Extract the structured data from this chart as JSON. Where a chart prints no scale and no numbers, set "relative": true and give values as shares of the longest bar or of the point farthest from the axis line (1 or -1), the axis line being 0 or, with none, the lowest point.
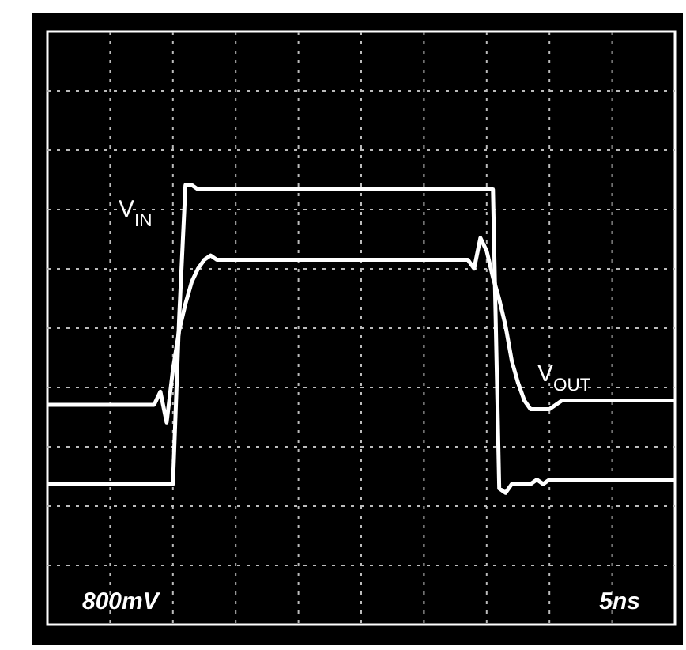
{
  "chart_data": {
    "type": "line",
    "relative": true,
    "grid": true,
    "line_style": "solid",
    "marker": "none",
    "categories": [
      null,
      null,
      null,
      null,
      null,
      null,
      null,
      null,
      null,
      null,
      null,
      null,
      null,
      null,
      null,
      null,
      null,
      null,
      null,
      null,
      null,
      null,
      null,
      null,
      null,
      null,
      null,
      null,
      null,
      null,
      null,
      null,
      null,
      null,
      null,
      null,
      null,
      null,
      null,
      null,
      null,
      null,
      null,
      null,
      null,
      null,
      null,
      null,
      null,
      null,
      null,
      null,
      null,
      null,
      null,
      null,
      null,
      null,
      null,
      null,
      null,
      null,
      null,
      null,
      null,
      null,
      null,
      null,
      null,
      null,
      null,
      null,
      null,
      null,
      null,
      null,
      null,
      null,
      null,
      null,
      null,
      null,
      null,
      null,
      null,
      null,
      null,
      null,
      null,
      null,
      null,
      null,
      null,
      null,
      null,
      null,
      null,
      null,
      null,
      null,
      null
    ],
    "series": [
      {
        "name": "V$_{IN}$",
        "color": "#ffffff",
        "values": [
          0.32,
          0.32,
          0.32,
          0.32,
          0.32,
          0.32,
          0.32,
          0.32,
          0.32,
          0.32,
          0.32,
          0.32,
          0.32,
          0.32,
          0.32,
          0.32,
          0.32,
          0.32,
          0.32,
          0.32,
          0.32,
          0.7,
          1,
          1,
          0.99,
          0.99,
          0.99,
          0.99,
          0.99,
          0.99,
          0.99,
          0.99,
          0.99,
          0.99,
          0.99,
          0.99,
          0.99,
          0.99,
          0.99,
          0.99,
          0.99,
          0.99,
          0.99,
          0.99,
          0.99,
          0.99,
          0.99,
          0.99,
          0.99,
          0.99,
          0.99,
          0.99,
          0.99,
          0.99,
          0.99,
          0.99,
          0.99,
          0.99,
          0.99,
          0.99,
          0.99,
          0.99,
          0.99,
          0.99,
          0.99,
          0.99,
          0.99,
          0.99,
          0.99,
          0.99,
          0.99,
          0.99,
          0.31,
          0.3,
          0.32,
          0.32,
          0.32,
          0.32,
          0.33,
          0.32,
          0.33,
          0.33,
          0.33,
          0.33,
          0.33,
          0.33,
          0.33,
          0.33,
          0.33,
          0.33,
          0.33,
          0.33,
          0.33,
          0.33,
          0.33,
          0.33,
          0.33,
          0.33,
          0.33,
          0.33,
          0.33
        ]
      },
      {
        "name": "V$_{OUT}$",
        "color": "#ffffff",
        "values": [
          0.5,
          0.5,
          0.5,
          0.5,
          0.5,
          0.5,
          0.5,
          0.5,
          0.5,
          0.5,
          0.5,
          0.5,
          0.5,
          0.5,
          0.5,
          0.5,
          0.5,
          0.5,
          0.53,
          0.46,
          0.58,
          0.67,
          0.73,
          0.78,
          0.81,
          0.83,
          0.84,
          0.83,
          0.83,
          0.83,
          0.83,
          0.83,
          0.83,
          0.83,
          0.83,
          0.83,
          0.83,
          0.83,
          0.83,
          0.83,
          0.83,
          0.83,
          0.83,
          0.83,
          0.83,
          0.83,
          0.83,
          0.83,
          0.83,
          0.83,
          0.83,
          0.83,
          0.83,
          0.83,
          0.83,
          0.83,
          0.83,
          0.83,
          0.83,
          0.83,
          0.83,
          0.83,
          0.83,
          0.83,
          0.83,
          0.83,
          0.83,
          0.83,
          0.81,
          0.88,
          0.85,
          0.79,
          0.74,
          0.68,
          0.6,
          0.55,
          0.51,
          0.49,
          0.49,
          0.49,
          0.49,
          0.5,
          0.51,
          0.51,
          0.51,
          0.51,
          0.51,
          0.51,
          0.51,
          0.51,
          0.51,
          0.51,
          0.51,
          0.51,
          0.51,
          0.51,
          0.51,
          0.51,
          0.51,
          0.51,
          0.51
        ]
      }
    ],
    "annotations": [
      "800mV",
      "5ns"
    ]
  }
}
